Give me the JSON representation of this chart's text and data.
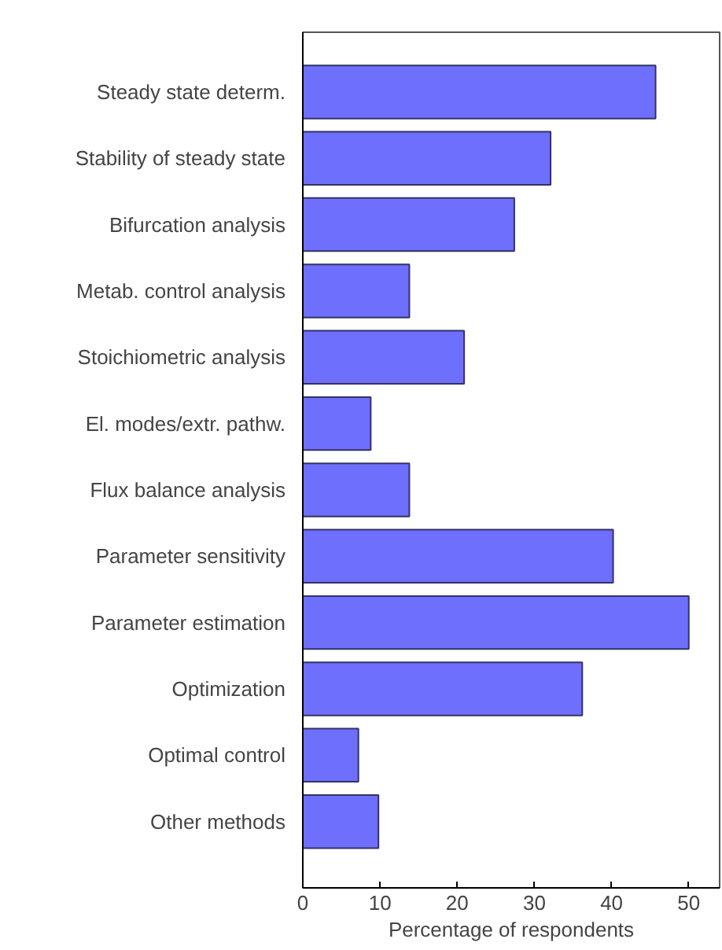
{
  "chart_data": {
    "type": "bar",
    "orientation": "horizontal",
    "xlabel": "Percentage of respondents",
    "categories": [
      "Steady state determ.",
      "Stability of steady state",
      "Bifurcation analysis",
      "Metab. control analysis",
      "Stoichiometric analysis",
      "El. modes/extr. pathw.",
      "Flux balance analysis",
      "Parameter sensitivity",
      "Parameter estimation",
      "Optimization",
      "Optimal control",
      "Other methods"
    ],
    "values": [
      45.7,
      32.1,
      27.4,
      13.8,
      20.9,
      8.8,
      13.8,
      40.2,
      50,
      36.2,
      7.2,
      9.8
    ],
    "color": "#6f6ffd",
    "xlim": [
      0,
      54
    ],
    "xticks": [
      0,
      10,
      20,
      30,
      40,
      50
    ],
    "grid": false
  }
}
